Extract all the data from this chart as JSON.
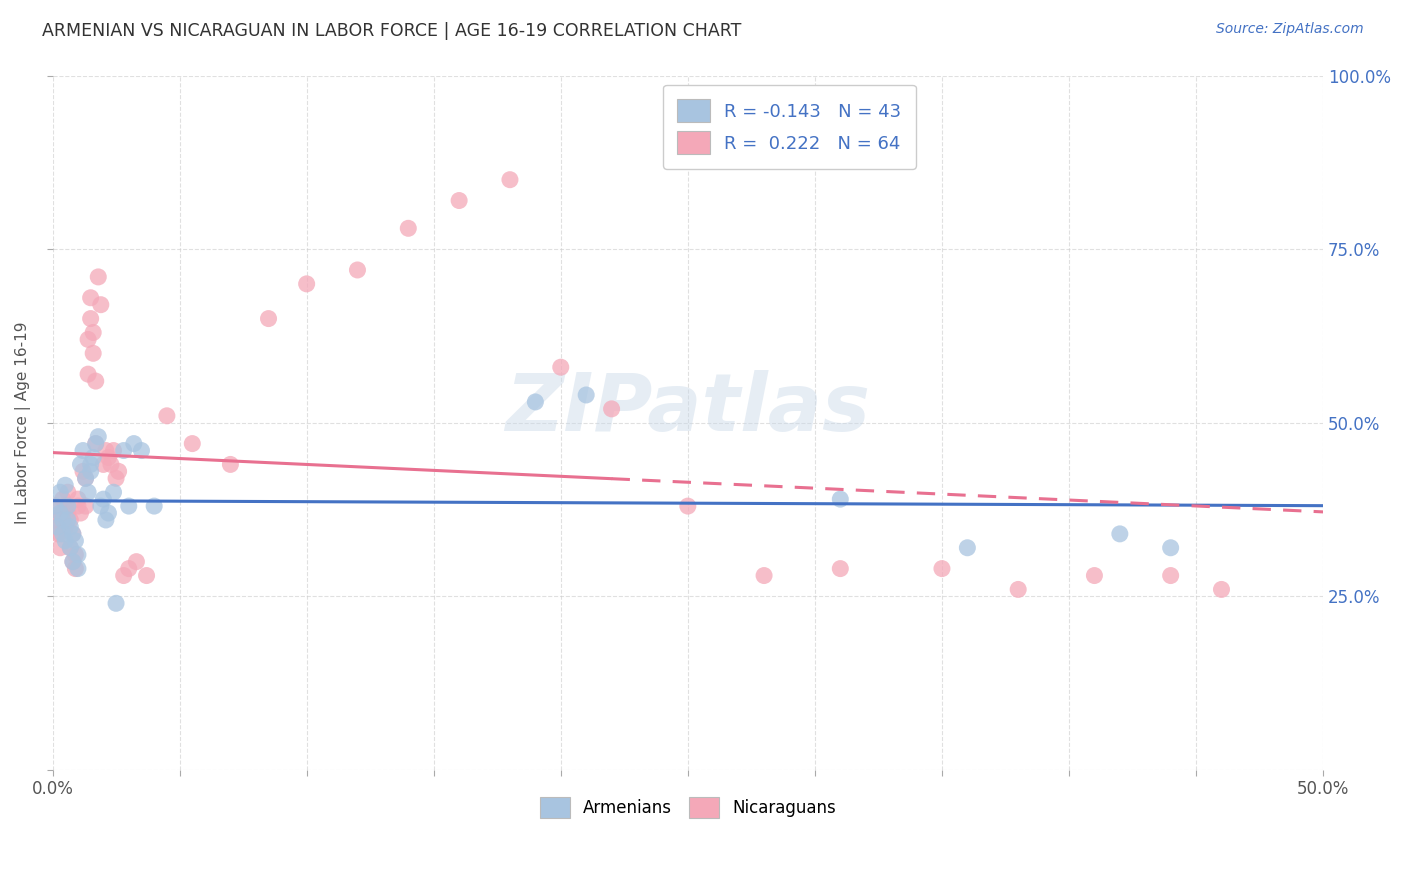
{
  "title": "ARMENIAN VS NICARAGUAN IN LABOR FORCE | AGE 16-19 CORRELATION CHART",
  "source": "Source: ZipAtlas.com",
  "ylabel": "In Labor Force | Age 16-19",
  "watermark": "ZIPatlas",
  "xlim": [
    0.0,
    0.5
  ],
  "ylim": [
    0.0,
    1.0
  ],
  "xticks": [
    0.0,
    0.05,
    0.1,
    0.15,
    0.2,
    0.25,
    0.3,
    0.35,
    0.4,
    0.45,
    0.5
  ],
  "yticks": [
    0.0,
    0.25,
    0.5,
    0.75,
    1.0
  ],
  "xticklabels_show": {
    "0.0": "0.0%",
    "0.5": "50.0%"
  },
  "yticklabels_right": [
    "",
    "25.0%",
    "50.0%",
    "75.0%",
    "100.0%"
  ],
  "armenian_color": "#a8c4e0",
  "nicaraguan_color": "#f4a8b8",
  "armenian_line_color": "#4472c4",
  "nicaraguan_line_color": "#e87090",
  "armenian_R": -0.143,
  "armenian_N": 43,
  "nicaraguan_R": 0.222,
  "nicaraguan_N": 64,
  "background_color": "#ffffff",
  "grid_color": "#cccccc",
  "title_color": "#333333",
  "legend_R_color": "#4472c4",
  "armenian_scatter_x": [
    0.001,
    0.002,
    0.003,
    0.003,
    0.004,
    0.004,
    0.005,
    0.005,
    0.006,
    0.006,
    0.007,
    0.007,
    0.008,
    0.008,
    0.009,
    0.01,
    0.01,
    0.011,
    0.012,
    0.013,
    0.014,
    0.015,
    0.015,
    0.016,
    0.017,
    0.018,
    0.019,
    0.02,
    0.021,
    0.022,
    0.024,
    0.025,
    0.028,
    0.03,
    0.032,
    0.035,
    0.04,
    0.19,
    0.21,
    0.31,
    0.36,
    0.42,
    0.44
  ],
  "armenian_scatter_y": [
    0.38,
    0.35,
    0.4,
    0.37,
    0.36,
    0.34,
    0.33,
    0.41,
    0.38,
    0.36,
    0.32,
    0.35,
    0.3,
    0.34,
    0.33,
    0.31,
    0.29,
    0.44,
    0.46,
    0.42,
    0.4,
    0.44,
    0.43,
    0.45,
    0.47,
    0.48,
    0.38,
    0.39,
    0.36,
    0.37,
    0.4,
    0.24,
    0.46,
    0.38,
    0.47,
    0.46,
    0.38,
    0.53,
    0.54,
    0.39,
    0.32,
    0.34,
    0.32
  ],
  "nicaraguan_scatter_x": [
    0.001,
    0.001,
    0.002,
    0.002,
    0.003,
    0.003,
    0.004,
    0.004,
    0.005,
    0.005,
    0.006,
    0.006,
    0.007,
    0.007,
    0.008,
    0.008,
    0.009,
    0.009,
    0.01,
    0.01,
    0.011,
    0.012,
    0.013,
    0.013,
    0.014,
    0.014,
    0.015,
    0.015,
    0.016,
    0.016,
    0.017,
    0.017,
    0.018,
    0.019,
    0.02,
    0.021,
    0.022,
    0.023,
    0.024,
    0.025,
    0.026,
    0.028,
    0.03,
    0.033,
    0.037,
    0.045,
    0.055,
    0.07,
    0.085,
    0.1,
    0.12,
    0.14,
    0.16,
    0.18,
    0.2,
    0.22,
    0.25,
    0.28,
    0.31,
    0.35,
    0.38,
    0.41,
    0.44,
    0.46
  ],
  "nicaraguan_scatter_y": [
    0.38,
    0.36,
    0.36,
    0.34,
    0.34,
    0.32,
    0.39,
    0.37,
    0.35,
    0.38,
    0.37,
    0.4,
    0.36,
    0.32,
    0.34,
    0.3,
    0.29,
    0.31,
    0.39,
    0.38,
    0.37,
    0.43,
    0.42,
    0.38,
    0.62,
    0.57,
    0.68,
    0.65,
    0.63,
    0.6,
    0.47,
    0.56,
    0.71,
    0.67,
    0.44,
    0.46,
    0.45,
    0.44,
    0.46,
    0.42,
    0.43,
    0.28,
    0.29,
    0.3,
    0.28,
    0.51,
    0.47,
    0.44,
    0.65,
    0.7,
    0.72,
    0.78,
    0.82,
    0.85,
    0.58,
    0.52,
    0.38,
    0.28,
    0.29,
    0.29,
    0.26,
    0.28,
    0.28,
    0.26
  ]
}
